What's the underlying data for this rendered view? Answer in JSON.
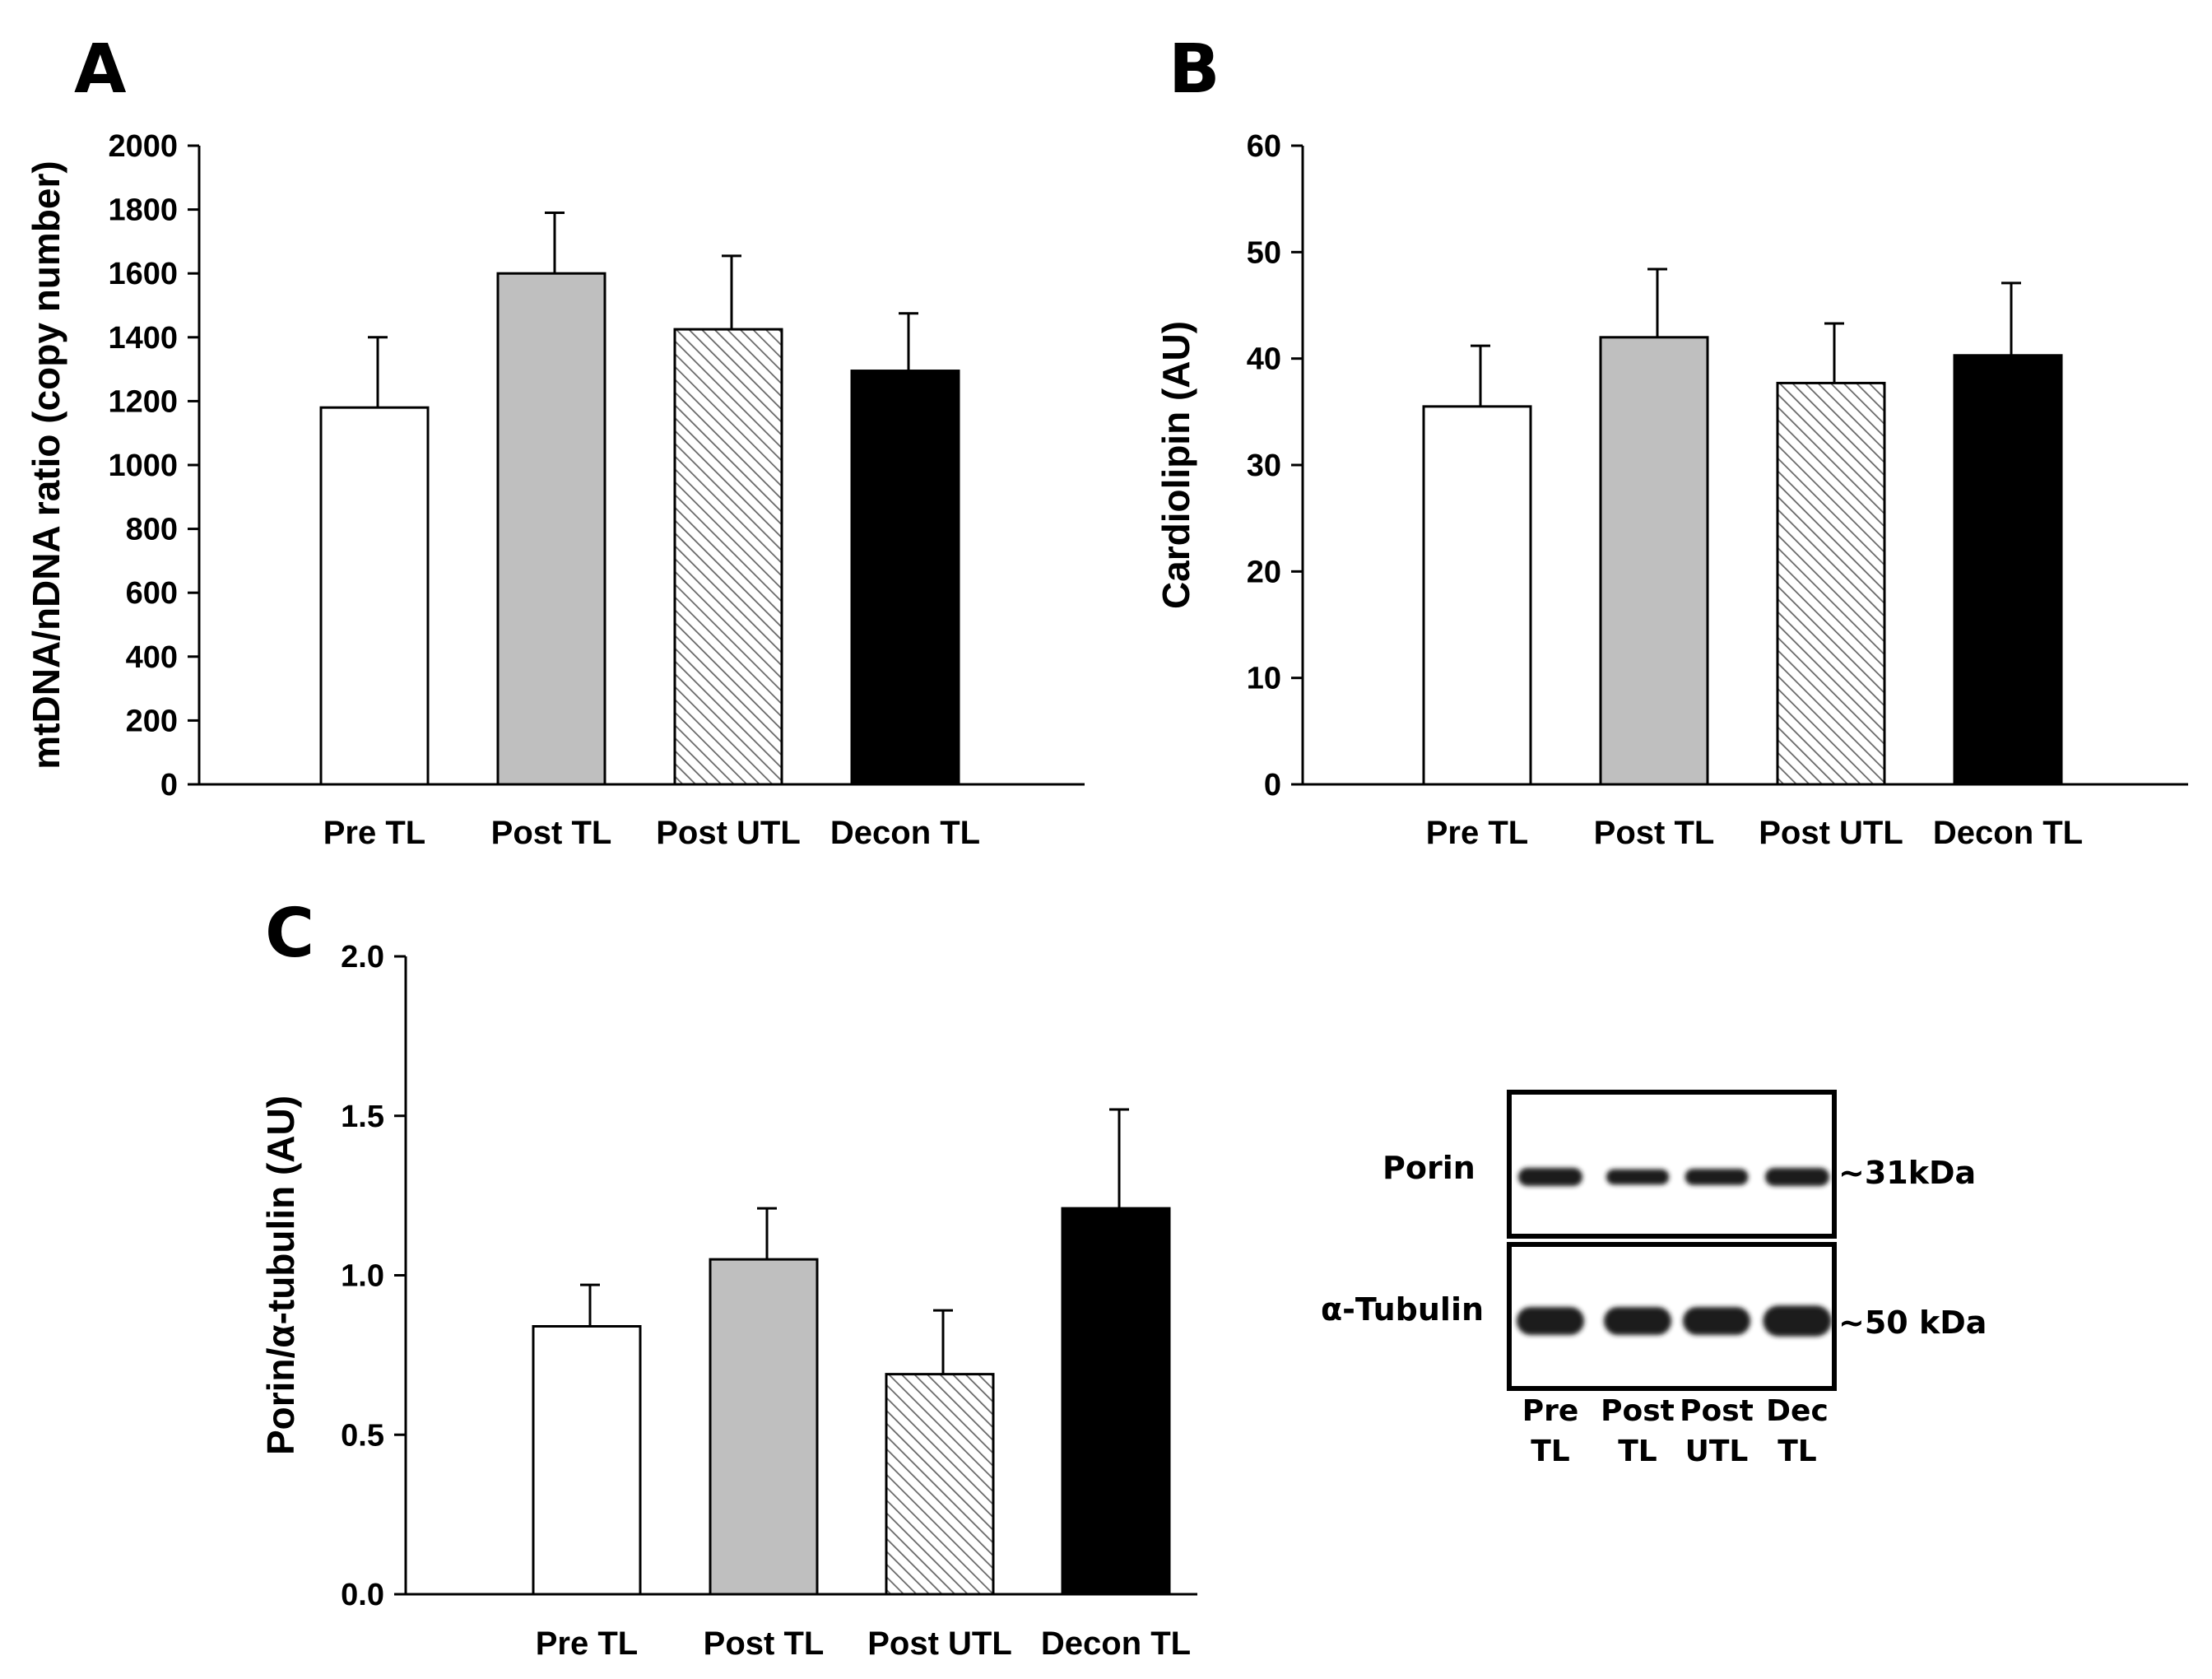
{
  "chart_data": [
    {
      "panel": "A",
      "type": "bar",
      "categories": [
        "Pre TL",
        "Post TL",
        "Post UTL",
        "Decon TL"
      ],
      "values": [
        1180,
        1600,
        1425,
        1295
      ],
      "errors": [
        220,
        190,
        230,
        180
      ],
      "fills": [
        "white",
        "gray",
        "hatch",
        "black"
      ],
      "ylabel": "mtDNA/nDNA ratio (copy number)",
      "ylim": [
        0,
        2000
      ],
      "yticks": [
        "0",
        "200",
        "400",
        "600",
        "800",
        "1000",
        "1200",
        "1400",
        "1600",
        "1800",
        "2000"
      ]
    },
    {
      "panel": "B",
      "type": "bar",
      "categories": [
        "Pre TL",
        "Post TL",
        "Post UTL",
        "Decon TL"
      ],
      "values": [
        35.5,
        42.0,
        37.7,
        40.3
      ],
      "errors": [
        5.7,
        6.4,
        5.6,
        6.8
      ],
      "fills": [
        "white",
        "gray",
        "hatch",
        "black"
      ],
      "ylabel": "Cardiolipin (AU)",
      "ylim": [
        0,
        60
      ],
      "yticks": [
        "0",
        "10",
        "20",
        "30",
        "40",
        "50",
        "60"
      ]
    },
    {
      "panel": "C",
      "type": "bar",
      "categories": [
        "Pre TL",
        "Post TL",
        "Post UTL",
        "Decon TL"
      ],
      "values": [
        0.84,
        1.05,
        0.69,
        1.21
      ],
      "errors": [
        0.13,
        0.16,
        0.2,
        0.31
      ],
      "fills": [
        "white",
        "gray",
        "hatch",
        "black"
      ],
      "ylabel": "Porin/α-tubulin (AU)",
      "ylim": [
        0,
        2
      ],
      "yticks": [
        "0.0",
        "0.5",
        "1.0",
        "1.5",
        "2.0"
      ]
    }
  ],
  "blot": {
    "rows": [
      {
        "protein": "Porin",
        "size": "~31kDa",
        "intensity": [
          1.0,
          0.85,
          0.9,
          1.0
        ]
      },
      {
        "protein": "α-Tubulin",
        "size": "~50 kDa",
        "intensity": [
          1.0,
          1.0,
          1.0,
          1.1
        ]
      }
    ],
    "lanes": [
      {
        "line1": "Pre",
        "line2": "TL"
      },
      {
        "line1": "Post",
        "line2": "TL"
      },
      {
        "line1": "Post",
        "line2": "UTL"
      },
      {
        "line1": "Dec",
        "line2": "TL"
      }
    ]
  },
  "colors": {
    "gray": "#bfbfbf",
    "black": "#000000",
    "white": "#ffffff",
    "hatch_line": "#666666",
    "blot_band": "#1a1a1a"
  }
}
